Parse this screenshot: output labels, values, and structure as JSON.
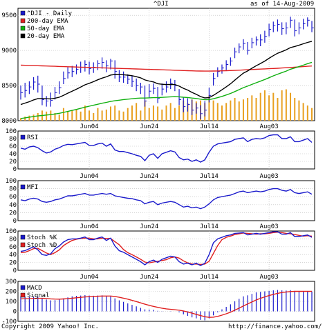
{
  "header": {
    "symbol": "^DJI",
    "asof": "as of 14-Aug-2009"
  },
  "footer": {
    "copyright": "Copyright 2009 Yahoo! Inc.",
    "url": "http://finance.yahoo.com/"
  },
  "colors": {
    "blue": "#1a1acc",
    "red": "#e02020",
    "green": "#10b010",
    "black": "#000000",
    "volume": "#e8a020",
    "grid": "#bbbbbb"
  },
  "chart_data": [
    {
      "type": "line",
      "panel": "price",
      "legend": [
        "^DJI - Daily",
        "200-day EMA",
        "50-day EMA",
        "20-day EMA"
      ],
      "ylim": [
        8000,
        9600
      ],
      "yticks": [
        8000,
        8500,
        9000,
        9500
      ],
      "xticks": [
        {
          "label": "Jun04",
          "i": 16
        },
        {
          "label": "Jun24",
          "i": 30
        },
        {
          "label": "Jul14",
          "i": 44
        },
        {
          "label": "Aug03",
          "i": 58
        }
      ],
      "n": 69,
      "close": [
        8400,
        8430,
        8480,
        8550,
        8520,
        8300,
        8280,
        8290,
        8400,
        8470,
        8600,
        8680,
        8700,
        8730,
        8760,
        8800,
        8740,
        8760,
        8810,
        8830,
        8780,
        8850,
        8700,
        8620,
        8620,
        8590,
        8560,
        8500,
        8480,
        8280,
        8420,
        8460,
        8320,
        8450,
        8480,
        8530,
        8500,
        8300,
        8200,
        8230,
        8150,
        8180,
        8100,
        8150,
        8360,
        8600,
        8700,
        8750,
        8800,
        8850,
        8980,
        9050,
        9100,
        9000,
        9110,
        9150,
        9150,
        9200,
        9300,
        9350,
        9370,
        9310,
        9320,
        9430,
        9280,
        9320,
        9380,
        9430,
        9320
      ],
      "high": [
        8500,
        8540,
        8560,
        8620,
        8640,
        8500,
        8350,
        8400,
        8480,
        8560,
        8700,
        8760,
        8780,
        8800,
        8840,
        8860,
        8840,
        8830,
        8860,
        8900,
        8860,
        8880,
        8860,
        8720,
        8700,
        8660,
        8640,
        8600,
        8540,
        8500,
        8520,
        8530,
        8480,
        8530,
        8560,
        8600,
        8580,
        8450,
        8330,
        8320,
        8300,
        8250,
        8220,
        8280,
        8470,
        8680,
        8760,
        8800,
        8860,
        8900,
        9040,
        9100,
        9160,
        9120,
        9180,
        9200,
        9230,
        9280,
        9380,
        9410,
        9440,
        9400,
        9400,
        9480,
        9440,
        9400,
        9450,
        9470,
        9420
      ],
      "low": [
        8300,
        8330,
        8380,
        8440,
        8400,
        8220,
        8200,
        8200,
        8300,
        8380,
        8520,
        8600,
        8620,
        8660,
        8680,
        8700,
        8660,
        8680,
        8720,
        8740,
        8690,
        8730,
        8600,
        8550,
        8540,
        8520,
        8480,
        8420,
        8380,
        8200,
        8320,
        8380,
        8250,
        8360,
        8400,
        8450,
        8420,
        8220,
        8120,
        8130,
        8080,
        8100,
        8020,
        8060,
        8260,
        8500,
        8620,
        8670,
        8720,
        8780,
        8890,
        8960,
        9010,
        8940,
        9030,
        9070,
        9060,
        9110,
        9200,
        9260,
        9270,
        9220,
        9230,
        9320,
        9200,
        9230,
        9300,
        9340,
        9260
      ],
      "ema200": [
        8790,
        8788,
        8786,
        8784,
        8782,
        8780,
        8778,
        8776,
        8774,
        8772,
        8770,
        8768,
        8766,
        8764,
        8762,
        8760,
        8758,
        8756,
        8754,
        8752,
        8750,
        8748,
        8746,
        8744,
        8742,
        8740,
        8738,
        8736,
        8734,
        8732,
        8730,
        8728,
        8726,
        8724,
        8722,
        8720,
        8718,
        8716,
        8714,
        8712,
        8710,
        8708,
        8707,
        8706,
        8706,
        8707,
        8708,
        8710,
        8712,
        8714,
        8716,
        8719,
        8722,
        8725,
        8728,
        8731,
        8734,
        8737,
        8740,
        8743,
        8746,
        8750,
        8754,
        8758,
        8762,
        8766,
        8770,
        8774,
        8778
      ],
      "ema50": [
        8030,
        8040,
        8050,
        8060,
        8068,
        8074,
        8080,
        8086,
        8095,
        8105,
        8118,
        8132,
        8146,
        8160,
        8176,
        8192,
        8206,
        8220,
        8234,
        8248,
        8260,
        8274,
        8284,
        8292,
        8300,
        8306,
        8312,
        8318,
        8322,
        8322,
        8325,
        8328,
        8328,
        8332,
        8336,
        8340,
        8342,
        8340,
        8334,
        8330,
        8322,
        8316,
        8306,
        8298,
        8300,
        8312,
        8328,
        8346,
        8366,
        8388,
        8414,
        8442,
        8470,
        8492,
        8516,
        8540,
        8562,
        8586,
        8612,
        8638,
        8662,
        8684,
        8706,
        8732,
        8750,
        8770,
        8790,
        8812,
        8830
      ],
      "ema20": [
        8230,
        8250,
        8270,
        8295,
        8315,
        8315,
        8312,
        8310,
        8320,
        8334,
        8360,
        8392,
        8420,
        8448,
        8478,
        8510,
        8532,
        8556,
        8582,
        8606,
        8624,
        8650,
        8658,
        8656,
        8654,
        8648,
        8640,
        8626,
        8610,
        8580,
        8564,
        8552,
        8526,
        8518,
        8514,
        8516,
        8514,
        8492,
        8460,
        8436,
        8402,
        8376,
        8344,
        8324,
        8328,
        8360,
        8400,
        8440,
        8482,
        8525,
        8577,
        8628,
        8676,
        8708,
        8746,
        8782,
        8814,
        8848,
        8888,
        8926,
        8960,
        8984,
        9008,
        9040,
        9056,
        9074,
        9094,
        9114,
        9130
      ],
      "volume": [
        0.05,
        0.08,
        0.1,
        0.12,
        0.15,
        0.2,
        0.18,
        0.2,
        0.15,
        0.12,
        0.25,
        0.18,
        0.2,
        0.22,
        0.18,
        0.3,
        0.2,
        0.15,
        0.25,
        0.2,
        0.22,
        0.28,
        0.3,
        0.2,
        0.18,
        0.25,
        0.3,
        0.35,
        0.2,
        0.4,
        0.25,
        0.3,
        0.28,
        0.22,
        0.3,
        0.35,
        0.25,
        0.3,
        0.4,
        0.35,
        0.42,
        0.38,
        0.4,
        0.35,
        0.5,
        0.4,
        0.35,
        0.3,
        0.35,
        0.4,
        0.45,
        0.38,
        0.42,
        0.45,
        0.5,
        0.45,
        0.55,
        0.6,
        0.5,
        0.55,
        0.45,
        0.6,
        0.62,
        0.55,
        0.45,
        0.4,
        0.35,
        0.3,
        0.25
      ]
    },
    {
      "type": "line",
      "panel": "rsi",
      "legend": [
        "RSI"
      ],
      "ylim": [
        0,
        100
      ],
      "yticks": [
        0,
        20,
        40,
        60,
        80,
        100
      ],
      "values": [
        55,
        52,
        58,
        60,
        56,
        48,
        42,
        45,
        52,
        56,
        62,
        65,
        64,
        66,
        68,
        70,
        62,
        62,
        66,
        68,
        60,
        66,
        50,
        46,
        46,
        43,
        40,
        36,
        33,
        22,
        36,
        40,
        28,
        40,
        44,
        48,
        45,
        30,
        24,
        26,
        20,
        24,
        18,
        24,
        44,
        60,
        66,
        68,
        70,
        72,
        78,
        80,
        82,
        72,
        78,
        80,
        79,
        82,
        88,
        90,
        90,
        80,
        80,
        85,
        72,
        72,
        76,
        80,
        70
      ]
    },
    {
      "type": "line",
      "panel": "mfi",
      "legend": [
        "MFI"
      ],
      "ylim": [
        0,
        100
      ],
      "yticks": [
        0,
        20,
        40,
        60,
        80,
        100
      ],
      "values": [
        52,
        50,
        54,
        56,
        54,
        48,
        46,
        48,
        52,
        54,
        58,
        62,
        62,
        64,
        66,
        68,
        64,
        64,
        66,
        68,
        66,
        68,
        62,
        60,
        58,
        56,
        55,
        52,
        50,
        42,
        46,
        48,
        40,
        44,
        46,
        48,
        46,
        40,
        34,
        36,
        32,
        34,
        30,
        34,
        42,
        52,
        58,
        60,
        62,
        64,
        68,
        72,
        74,
        70,
        72,
        74,
        72,
        74,
        78,
        80,
        80,
        76,
        74,
        78,
        70,
        68,
        70,
        72,
        66
      ]
    },
    {
      "type": "line",
      "panel": "stoch",
      "legend": [
        "Stoch %K",
        "Stoch %D"
      ],
      "ylim": [
        0,
        100
      ],
      "yticks": [
        0,
        20,
        40,
        60,
        80,
        100
      ],
      "k": [
        48,
        50,
        55,
        60,
        52,
        40,
        38,
        42,
        55,
        62,
        72,
        78,
        80,
        80,
        82,
        85,
        78,
        78,
        82,
        85,
        76,
        82,
        62,
        50,
        46,
        40,
        34,
        28,
        22,
        14,
        22,
        26,
        20,
        28,
        32,
        36,
        34,
        22,
        16,
        18,
        14,
        18,
        12,
        18,
        40,
        70,
        80,
        84,
        88,
        90,
        94,
        95,
        96,
        90,
        92,
        94,
        92,
        94,
        96,
        98,
        98,
        92,
        92,
        96,
        86,
        86,
        88,
        90,
        84
      ],
      "d": [
        45,
        46,
        50,
        55,
        56,
        50,
        44,
        40,
        45,
        52,
        63,
        70,
        76,
        79,
        81,
        82,
        82,
        80,
        80,
        82,
        81,
        81,
        73,
        65,
        53,
        45,
        40,
        34,
        28,
        21,
        19,
        21,
        23,
        25,
        27,
        32,
        34,
        31,
        24,
        19,
        16,
        16,
        15,
        16,
        23,
        43,
        63,
        78,
        84,
        87,
        91,
        93,
        95,
        94,
        93,
        92,
        93,
        93,
        94,
        96,
        97,
        96,
        94,
        93,
        91,
        89,
        87,
        88,
        87
      ]
    },
    {
      "type": "bar",
      "panel": "macd",
      "legend": [
        "MACD",
        "Signal"
      ],
      "ylim": [
        -100,
        300
      ],
      "yticks": [
        -100,
        0,
        100,
        200,
        300
      ],
      "macd": [
        150,
        148,
        146,
        148,
        146,
        130,
        118,
        110,
        112,
        120,
        130,
        140,
        150,
        155,
        158,
        162,
        158,
        156,
        158,
        160,
        150,
        148,
        130,
        110,
        95,
        80,
        65,
        50,
        35,
        20,
        18,
        15,
        5,
        2,
        0,
        2,
        0,
        -10,
        -30,
        -45,
        -60,
        -70,
        -85,
        -90,
        -70,
        -40,
        -10,
        20,
        45,
        70,
        100,
        125,
        150,
        160,
        175,
        190,
        195,
        200,
        205,
        210,
        214,
        210,
        208,
        212,
        204,
        200,
        200,
        202,
        198
      ],
      "signal": [
        125,
        126,
        127,
        129,
        130,
        130,
        128,
        125,
        123,
        122,
        124,
        127,
        131,
        136,
        140,
        144,
        147,
        149,
        151,
        153,
        153,
        153,
        149,
        141,
        132,
        122,
        110,
        98,
        85,
        72,
        60,
        50,
        40,
        32,
        25,
        20,
        16,
        12,
        4,
        -6,
        -18,
        -30,
        -42,
        -54,
        -60,
        -58,
        -50,
        -38,
        -24,
        -8,
        12,
        32,
        54,
        74,
        94,
        114,
        130,
        145,
        158,
        170,
        180,
        188,
        194,
        198,
        200,
        200,
        200,
        200,
        200
      ]
    }
  ]
}
